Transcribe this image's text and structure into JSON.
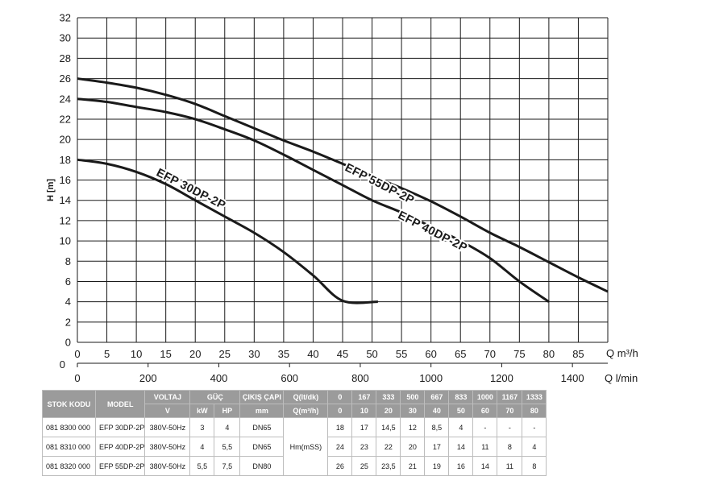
{
  "chart_data": {
    "type": "line",
    "ylabel": "H [m]",
    "xlabel_m3h": "Q m³/h",
    "xlabel_lmin": "Q l/min",
    "xlim_m3h": [
      0,
      90
    ],
    "xlim_lmin": [
      0,
      1500
    ],
    "ylim": [
      0,
      32
    ],
    "grid": true,
    "y_ticks": [
      "0",
      "2",
      "4",
      "6",
      "8",
      "10",
      "12",
      "14",
      "16",
      "18",
      "20",
      "22",
      "24",
      "26",
      "28",
      "30",
      "32"
    ],
    "x_ticks_m3h": [
      "0",
      "5",
      "10",
      "15",
      "20",
      "25",
      "30",
      "35",
      "40",
      "45",
      "50",
      "55",
      "60",
      "65",
      "70",
      "75",
      "80",
      "85"
    ],
    "x_ticks_lmin": [
      "0",
      "200",
      "400",
      "600",
      "800",
      "1000",
      "1200",
      "1400"
    ],
    "lower_axis_start": "0",
    "series": [
      {
        "name": "EFP 30DP-2P",
        "x": [
          0,
          5,
          10,
          15,
          20,
          25,
          30,
          35,
          40,
          45,
          51
        ],
        "y": [
          18,
          17.6,
          16.8,
          15.6,
          14,
          12.4,
          10.8,
          8.9,
          6.6,
          4.1,
          4
        ]
      },
      {
        "name": "EFP 40DP-2P",
        "x": [
          0,
          5,
          10,
          15,
          20,
          25,
          30,
          35,
          40,
          45,
          50,
          55,
          60,
          65,
          70,
          75,
          80
        ],
        "y": [
          24,
          23.7,
          23.2,
          22.7,
          22,
          21,
          19.9,
          18.5,
          17,
          15.5,
          14,
          12.8,
          11.4,
          10,
          8.3,
          6,
          4
        ]
      },
      {
        "name": "EFP 55DP-2P",
        "x": [
          0,
          5,
          10,
          15,
          20,
          25,
          30,
          35,
          40,
          45,
          50,
          55,
          60,
          65,
          70,
          75,
          80,
          85,
          90
        ],
        "y": [
          26,
          25.6,
          25.1,
          24.4,
          23.5,
          22.3,
          21.1,
          19.9,
          18.8,
          17.6,
          16.4,
          15.2,
          13.9,
          12.4,
          10.8,
          9.4,
          7.9,
          6.4,
          5
        ]
      }
    ]
  },
  "table": {
    "header1": [
      "STOK KODU",
      "MODEL",
      "VOLTAJ",
      "GÜÇ",
      "ÇIKIŞ ÇAPI",
      "Q(lt/dk)",
      "0",
      "167",
      "333",
      "500",
      "667",
      "833",
      "1000",
      "1167",
      "1333"
    ],
    "header2": [
      "V",
      "kW",
      "HP",
      "mm",
      "Q(m³/h)",
      "0",
      "10",
      "20",
      "30",
      "40",
      "50",
      "60",
      "70",
      "80"
    ],
    "hm_label": "Hm(mSS)",
    "rows": [
      {
        "stock": "081 8300 000",
        "model": "EFP 30DP-2P",
        "voltage": "380V-50Hz",
        "kw": "3",
        "hp": "4",
        "outlet": "DN65",
        "values": [
          "18",
          "17",
          "14,5",
          "12",
          "8,5",
          "4",
          "-",
          "-",
          "-"
        ]
      },
      {
        "stock": "081 8310 000",
        "model": "EFP 40DP-2P",
        "voltage": "380V-50Hz",
        "kw": "4",
        "hp": "5,5",
        "outlet": "DN65",
        "values": [
          "24",
          "23",
          "22",
          "20",
          "17",
          "14",
          "11",
          "8",
          "4"
        ]
      },
      {
        "stock": "081 8320 000",
        "model": "EFP 55DP-2P",
        "voltage": "380V-50Hz",
        "kw": "5,5",
        "hp": "7,5",
        "outlet": "DN80",
        "values": [
          "26",
          "25",
          "23,5",
          "21",
          "19",
          "16",
          "14",
          "11",
          "8"
        ]
      }
    ]
  }
}
